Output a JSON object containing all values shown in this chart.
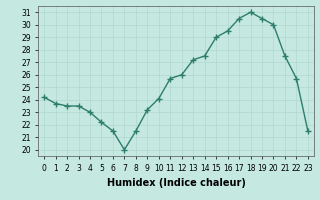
{
  "x": [
    0,
    1,
    2,
    3,
    4,
    5,
    6,
    7,
    8,
    9,
    10,
    11,
    12,
    13,
    14,
    15,
    16,
    17,
    18,
    19,
    20,
    21,
    22,
    23
  ],
  "y": [
    24.2,
    23.7,
    23.5,
    23.5,
    23.0,
    22.2,
    21.5,
    20.0,
    21.5,
    23.2,
    24.1,
    25.7,
    26.0,
    27.2,
    27.5,
    29.0,
    29.5,
    30.5,
    31.0,
    30.5,
    30.0,
    27.5,
    25.7,
    21.5
  ],
  "line_color": "#2d7d6d",
  "marker": "+",
  "marker_size": 4,
  "bg_color": "#c5e8e0",
  "grid_color": "#b0d8ce",
  "xlabel": "Humidex (Indice chaleur)",
  "ylim": [
    19.5,
    31.5
  ],
  "xlim": [
    -0.5,
    23.5
  ],
  "yticks": [
    20,
    21,
    22,
    23,
    24,
    25,
    26,
    27,
    28,
    29,
    30,
    31
  ],
  "xtick_labels": [
    "0",
    "1",
    "2",
    "3",
    "4",
    "5",
    "6",
    "7",
    "8",
    "9",
    "10",
    "11",
    "12",
    "13",
    "14",
    "15",
    "16",
    "17",
    "18",
    "19",
    "20",
    "21",
    "22",
    "23"
  ],
  "xlabel_fontsize": 7,
  "tick_fontsize": 5.5,
  "linewidth": 1.0,
  "marker_linewidth": 1.0
}
